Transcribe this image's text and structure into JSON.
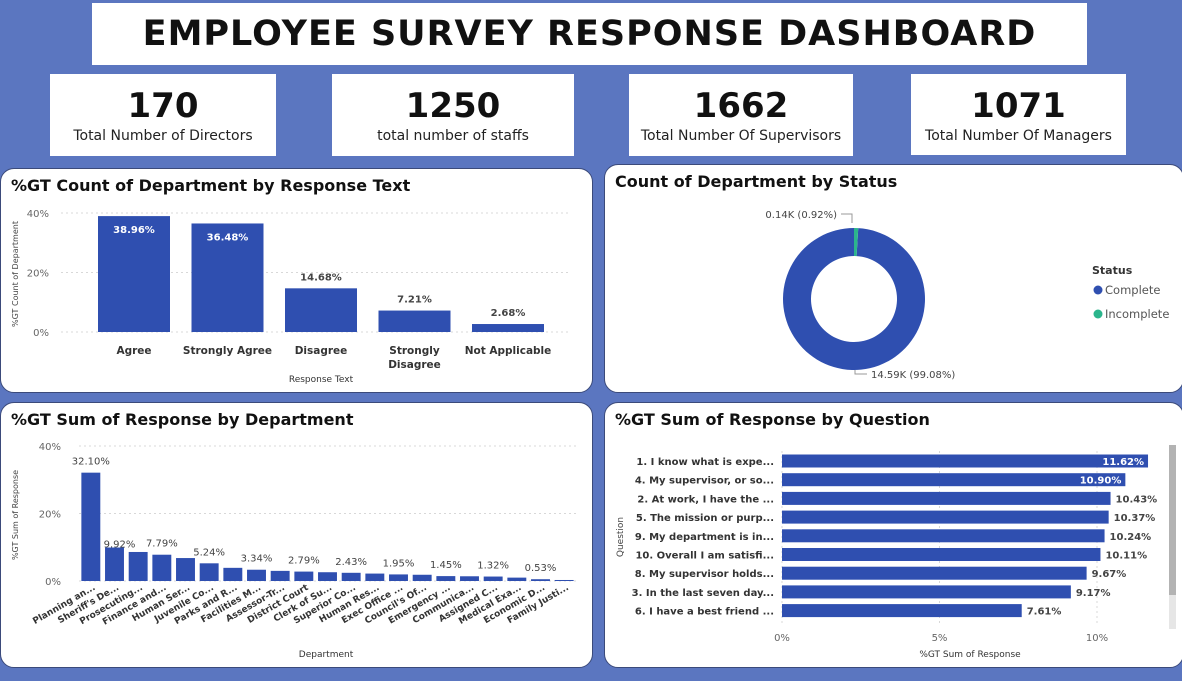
{
  "header": {
    "title": "EMPLOYEE SURVEY RESPONSE DASHBOARD"
  },
  "kpis": [
    {
      "value": "170",
      "label": "Total Number of Directors"
    },
    {
      "value": "1250",
      "label": "total number of staffs"
    },
    {
      "value": "1662",
      "label": "Total Number Of Supervisors"
    },
    {
      "value": "1071",
      "label": "Total Number Of Managers"
    }
  ],
  "colors": {
    "bar": "#2f4fb0",
    "complete": "#2f4fb0",
    "incomplete": "#2bb58c",
    "background": "#5b76c0"
  },
  "chart_data": [
    {
      "type": "bar",
      "title": "%GT Count of Department by Response Text",
      "xlabel": "Response Text",
      "ylabel": "%GT Count of Department",
      "yticks": [
        "40%",
        "20%",
        "0%"
      ],
      "ylim": [
        0,
        40
      ],
      "categories": [
        [
          "Agree"
        ],
        [
          "Strongly Agree"
        ],
        [
          "Disagree"
        ],
        [
          "Strongly",
          "Disagree"
        ],
        [
          "Not Applicable"
        ]
      ],
      "values": [
        38.96,
        36.48,
        14.68,
        7.21,
        2.68
      ],
      "labels": [
        "38.96%",
        "36.48%",
        "14.68%",
        "7.21%",
        "2.68%"
      ]
    },
    {
      "type": "pie",
      "title": "Count of Department by Status",
      "legend_title": "Status",
      "legend_position": "right",
      "slices": [
        {
          "name": "Complete",
          "value": 14590,
          "percent": 99.08,
          "label": "14.59K (99.08%)"
        },
        {
          "name": "Incomplete",
          "value": 140,
          "percent": 0.92,
          "label": "0.14K (0.92%)"
        }
      ]
    },
    {
      "type": "bar",
      "title": "%GT Sum of Response by Department",
      "xlabel": "Department",
      "ylabel": "%GT Sum of Response",
      "yticks": [
        "40%",
        "20%",
        "0%"
      ],
      "ylim": [
        0,
        40
      ],
      "categories": [
        "Planning an...",
        "Sheriff's De...",
        "Prosecuting...",
        "Finance and...",
        "Human Ser...",
        "Juvenile Co...",
        "Parks and R...",
        "Facilities M...",
        "Assessor-Tr...",
        "District Court",
        "Clerk of Su...",
        "Superior Co...",
        "Human Res...",
        "Exec Office ...",
        "Council's Of...",
        "Emergency ...",
        "Communica...",
        "Assigned C...",
        "Medical Exa...",
        "Economic D...",
        "Family Justi..."
      ],
      "values": [
        32.1,
        9.92,
        8.6,
        7.79,
        6.8,
        5.24,
        3.9,
        3.34,
        3.0,
        2.79,
        2.6,
        2.43,
        2.2,
        1.95,
        1.85,
        1.45,
        1.4,
        1.32,
        1.0,
        0.53,
        0.3
      ],
      "value_labels": {
        "0": "32.10%",
        "1": "9.92%",
        "3": "7.79%",
        "5": "5.24%",
        "7": "3.34%",
        "9": "2.79%",
        "11": "2.43%",
        "13": "1.95%",
        "15": "1.45%",
        "17": "1.32%",
        "19": "0.53%"
      }
    },
    {
      "type": "bar",
      "orientation": "horizontal",
      "title": "%GT Sum of Response by Question",
      "xlabel": "%GT Sum of Response",
      "ylabel": "Question",
      "xticks": [
        "0%",
        "5%",
        "10%"
      ],
      "xlim": [
        0,
        12
      ],
      "categories": [
        "1. I know what is expe...",
        "4. My supervisor, or so...",
        "2. At work, I have the ...",
        "5. The mission or purp...",
        "9. My department is in...",
        "10. Overall I am satisfi...",
        "8. My supervisor holds...",
        "3. In the last seven day...",
        "6. I have a best friend ..."
      ],
      "values": [
        11.62,
        10.9,
        10.43,
        10.37,
        10.24,
        10.11,
        9.67,
        9.17,
        7.61
      ],
      "labels": [
        "11.62%",
        "10.90%",
        "10.43%",
        "10.37%",
        "10.24%",
        "10.11%",
        "9.67%",
        "9.17%",
        "7.61%"
      ]
    }
  ]
}
